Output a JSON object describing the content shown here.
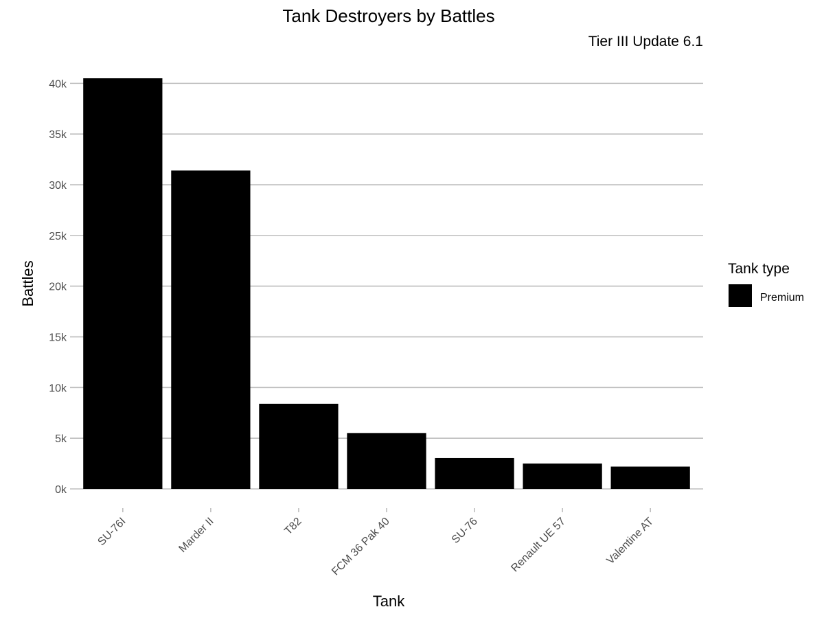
{
  "chart_data": {
    "type": "bar",
    "title": "Tank Destroyers by Battles",
    "subtitle": "Tier III Update 6.1",
    "xlabel": "Tank",
    "ylabel": "Battles",
    "categories": [
      "SU-76I",
      "Marder II",
      "T82",
      "FCM 36 Pak 40",
      "SU-76",
      "Renault UE 57",
      "Valentine AT"
    ],
    "series": [
      {
        "name": "Premium",
        "values": [
          40500,
          31400,
          8400,
          5500,
          3050,
          2500,
          2200
        ]
      }
    ],
    "ylim": [
      0,
      40500
    ],
    "yticks": [
      0,
      5000,
      10000,
      15000,
      20000,
      25000,
      30000,
      35000,
      40000
    ],
    "ytick_labels": [
      "0k",
      "5k",
      "10k",
      "15k",
      "20k",
      "25k",
      "30k",
      "35k",
      "40k"
    ],
    "legend": {
      "title": "Tank type",
      "position": "right"
    },
    "grid": true,
    "bar_color": "#000000"
  }
}
